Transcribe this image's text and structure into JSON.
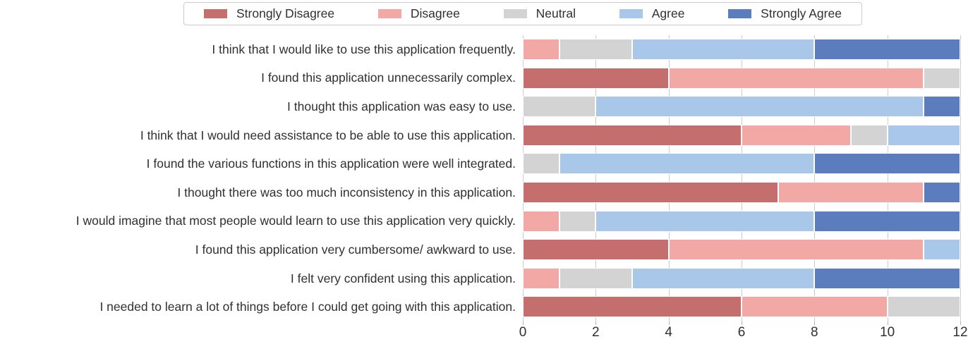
{
  "colors": {
    "strongly_disagree": "#c56e6e",
    "disagree": "#f2a9a6",
    "neutral": "#d3d3d3",
    "agree": "#a9c7e8",
    "strongly_agree": "#5b7dbe",
    "gridline": "#cccccc",
    "tick": "#b3b3b3",
    "text": "#303030",
    "legend_border": "#cccccc",
    "background": "#ffffff"
  },
  "chart_data": {
    "type": "bar",
    "stacked": true,
    "orientation": "horizontal",
    "title": "",
    "xlabel": "",
    "ylabel": "",
    "xlim": [
      0,
      12
    ],
    "xticks": [
      0,
      2,
      4,
      6,
      8,
      10,
      12
    ],
    "grid": true,
    "legend_position": "top",
    "categories": [
      "I think that I would like to use this application frequently.",
      "I found this application unnecessarily complex.",
      "I thought this application was easy to use.",
      "I think that I would need assistance to be able to use this application.",
      "I found the various functions in this application were well integrated.",
      "I thought there was too much inconsistency in this application.",
      "I would imagine that most people would learn to use this application very quickly.",
      "I found this application very cumbersome/ awkward to use.",
      "I felt very confident using this application.",
      "I needed to learn a lot of things before I could get going with this application."
    ],
    "series": [
      {
        "name": "Strongly Disagree",
        "color": "#c56e6e",
        "values": [
          0,
          4,
          0,
          6,
          0,
          7,
          0,
          4,
          0,
          6
        ]
      },
      {
        "name": "Disagree",
        "color": "#f2a9a6",
        "values": [
          1,
          7,
          0,
          3,
          0,
          4,
          1,
          7,
          1,
          4
        ]
      },
      {
        "name": "Neutral",
        "color": "#d3d3d3",
        "values": [
          2,
          1,
          2,
          1,
          1,
          0,
          1,
          0,
          2,
          2
        ]
      },
      {
        "name": "Agree",
        "color": "#a9c7e8",
        "values": [
          5,
          0,
          9,
          2,
          7,
          0,
          6,
          1,
          5,
          0
        ]
      },
      {
        "name": "Strongly Agree",
        "color": "#5b7dbe",
        "values": [
          4,
          0,
          1,
          0,
          4,
          1,
          4,
          0,
          4,
          0
        ]
      }
    ]
  }
}
